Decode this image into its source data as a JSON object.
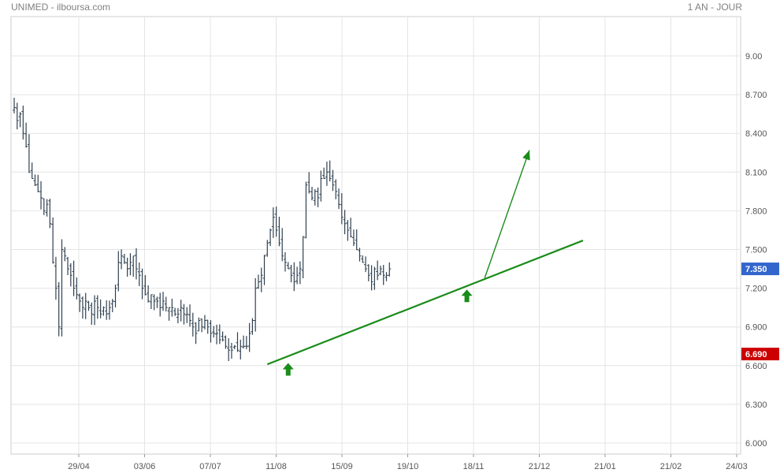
{
  "header": {
    "title": "UNIMED - ilboursa.com",
    "period": "1 AN - JOUR"
  },
  "chart_data": {
    "type": "ohlc",
    "symbol": "UNIMED",
    "y_ticks": [
      "9.00",
      "8.700",
      "8.400",
      "8.100",
      "7.800",
      "7.500",
      "7.200",
      "6.900",
      "6.600",
      "6.300",
      "6.000"
    ],
    "ylim": [
      6.0,
      9.0
    ],
    "x_ticks": [
      "29/04",
      "03/06",
      "07/07",
      "11/08",
      "15/09",
      "19/10",
      "18/11",
      "21/12",
      "21/01",
      "21/02",
      "24/03"
    ],
    "last_price": {
      "label": "7.350",
      "value": 7.35,
      "color": "#3366cc"
    },
    "low_price": {
      "label": "6.690",
      "value": 6.69,
      "color": "#cc0000"
    },
    "close_series": [
      8.6,
      8.5,
      8.55,
      8.4,
      8.3,
      8.1,
      8.05,
      8.0,
      7.95,
      7.9,
      7.8,
      7.85,
      7.7,
      7.4,
      7.2,
      6.9,
      7.5,
      7.45,
      7.35,
      7.3,
      7.2,
      7.15,
      7.1,
      7.05,
      7.1,
      7.05,
      7.0,
      7.1,
      7.05,
      7.0,
      7.05,
      7.0,
      7.05,
      7.1,
      7.2,
      7.4,
      7.45,
      7.4,
      7.35,
      7.4,
      7.45,
      7.35,
      7.3,
      7.2,
      7.15,
      7.1,
      7.15,
      7.1,
      7.1,
      7.05,
      7.1,
      7.05,
      7.05,
      7.05,
      7.0,
      7.0,
      7.05,
      7.0,
      7.0,
      6.95,
      6.9,
      6.85,
      6.95,
      6.9,
      6.95,
      6.9,
      6.85,
      6.85,
      6.85,
      6.8,
      6.8,
      6.75,
      6.72,
      6.72,
      6.75,
      6.72,
      6.75,
      6.75,
      6.75,
      6.85,
      6.95,
      7.2,
      7.25,
      7.3,
      7.45,
      7.55,
      7.65,
      7.75,
      7.65,
      7.55,
      7.45,
      7.4,
      7.35,
      7.3,
      7.25,
      7.3,
      7.35,
      7.6,
      8.0,
      7.95,
      7.9,
      7.95,
      7.9,
      8.05,
      8.05,
      8.1,
      8.05,
      8.0,
      7.95,
      7.85,
      7.75,
      7.7,
      7.65,
      7.6,
      7.55,
      7.5,
      7.45,
      7.4,
      7.35,
      7.3,
      7.25,
      7.35,
      7.3,
      7.35,
      7.3,
      7.3,
      7.35
    ],
    "trend_lines": [
      {
        "name": "support",
        "color": "#1a8c1a",
        "start": {
          "index": 85,
          "value": 6.61
        },
        "end": {
          "index": 191,
          "value": 7.57
        }
      },
      {
        "name": "target-arrow",
        "color": "#1a8c1a",
        "start": {
          "index": 158,
          "value": 7.28
        },
        "end": {
          "index": 173,
          "value": 8.27
        }
      }
    ],
    "markers": [
      {
        "name": "up-arrow",
        "index": 92,
        "value": 6.62,
        "color": "#1a8c1a"
      },
      {
        "name": "up-arrow",
        "index": 152,
        "value": 7.19,
        "color": "#1a8c1a"
      }
    ],
    "grid": true,
    "axis_position": "right"
  }
}
